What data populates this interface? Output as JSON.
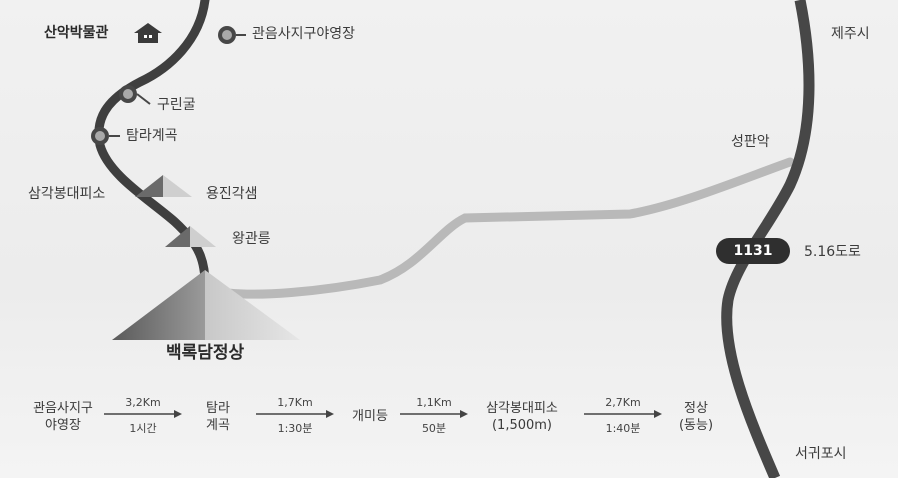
{
  "map": {
    "places": {
      "museum": "산악박물관",
      "campsite": "관음사지구야영장",
      "gurin": "구린굴",
      "tamra": "탐라계곡",
      "samgak": "삼각봉대피소",
      "yongjin": "용진각샘",
      "wanggwan": "왕관릉",
      "summit": "백록담정상",
      "seongpan": "성판악",
      "jeju": "제주시",
      "seogwipo": "서귀포시",
      "road_name": "5.16도로",
      "road_number": "1131"
    }
  },
  "route": {
    "steps": [
      {
        "line1": "관음사지구",
        "line2": "야영장"
      },
      {
        "line1": "탐라",
        "line2": "계곡"
      },
      {
        "line1": "개미등",
        "line2": ""
      },
      {
        "line1": "삼각봉대피소",
        "line2": "(1,500m)"
      },
      {
        "line1": "정상",
        "line2": "(동능)"
      }
    ],
    "segments": [
      {
        "distance": "3,2Km",
        "time": "1시간"
      },
      {
        "distance": "1,7Km",
        "time": "1:30분"
      },
      {
        "distance": "1,1Km",
        "time": "50분"
      },
      {
        "distance": "2,7Km",
        "time": "1:40분"
      }
    ]
  }
}
